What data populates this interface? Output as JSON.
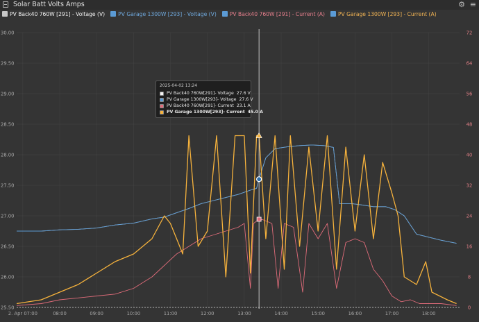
{
  "window": {
    "title": "Solar Batt Volts Amps"
  },
  "legend": [
    {
      "label": "PV Back40 760W [291] - Voltage (V)",
      "color": "#e8e8e8",
      "text_color": "#f2f2f2"
    },
    {
      "label": "PV Garage 1300W [293] - Voltage (V)",
      "color": "#5b9bd5",
      "text_color": "#6fa8dc"
    },
    {
      "label": "PV Back40 760W [291] - Current (A)",
      "color": "#e06c7a",
      "text_color": "#e57f8c"
    },
    {
      "label": "PV Garage 1300W [293] - Current (A)",
      "color": "#f6b23c",
      "text_color": "#f2b454"
    }
  ],
  "tooltip": {
    "header": "2025-04-02 13:24",
    "rows": [
      {
        "name": "PV Back40 760W[291]- Voltage",
        "value": "27.6 V",
        "color": "#f5f5f5",
        "bold": false
      },
      {
        "name": "PV Garage 1300W[293]- Voltage",
        "value": "27.6 V",
        "color": "#5b9bd5",
        "bold": false
      },
      {
        "name": "PV Back40 760W[291]- Current",
        "value": "23.1 A",
        "color": "#e06c7a",
        "bold": false
      },
      {
        "name": "PV Garage 1300W[293]- Current",
        "value": "45.0 A",
        "color": "#f6b23c",
        "bold": true
      }
    ]
  },
  "chart_data": {
    "type": "line",
    "x_range": [
      "2025-04-02 06:50",
      "2025-04-02 18:50"
    ],
    "x_ticks": [
      "2. Apr 07:00",
      "08:00",
      "09:00",
      "10:00",
      "11:00",
      "12:00",
      "13:00",
      "14:00",
      "15:00",
      "16:00",
      "17:00",
      "18:00"
    ],
    "y_left": {
      "unit": "V",
      "range": [
        25.5,
        30.0
      ],
      "ticks": [
        "25.50",
        "26.00",
        "26.50",
        "27.00",
        "27.50",
        "28.00",
        "28.50",
        "29.00",
        "29.50",
        "30.00"
      ]
    },
    "y_right": {
      "unit": "A",
      "range": [
        0,
        72
      ],
      "ticks": [
        "0",
        "8",
        "16",
        "24",
        "32",
        "40",
        "48",
        "56",
        "64",
        "72"
      ]
    },
    "crosshair_time": "13:24",
    "series": [
      {
        "name": "PV Back40 760W [291] - Voltage (V)",
        "axis": "left",
        "color": "#e8e8e8",
        "points": [
          [
            "06:50",
            26.75
          ],
          [
            "07:30",
            26.75
          ],
          [
            "08:00",
            26.77
          ],
          [
            "08:30",
            26.78
          ],
          [
            "09:00",
            26.8
          ],
          [
            "09:30",
            26.85
          ],
          [
            "10:00",
            26.88
          ],
          [
            "10:30",
            26.95
          ],
          [
            "10:50",
            26.98
          ],
          [
            "11:10",
            27.05
          ],
          [
            "11:30",
            27.12
          ],
          [
            "11:50",
            27.2
          ],
          [
            "12:10",
            27.25
          ],
          [
            "12:30",
            27.3
          ],
          [
            "12:50",
            27.35
          ],
          [
            "13:10",
            27.42
          ],
          [
            "13:20",
            27.45
          ],
          [
            "13:24",
            27.6
          ],
          [
            "13:35",
            27.95
          ],
          [
            "13:50",
            28.1
          ],
          [
            "14:10",
            28.13
          ],
          [
            "14:30",
            28.15
          ],
          [
            "14:50",
            28.16
          ],
          [
            "15:10",
            28.15
          ],
          [
            "15:25",
            28.12
          ],
          [
            "15:35",
            27.2
          ],
          [
            "15:55",
            27.2
          ],
          [
            "16:10",
            27.18
          ],
          [
            "16:30",
            27.15
          ],
          [
            "16:50",
            27.15
          ],
          [
            "17:05",
            27.1
          ],
          [
            "17:20",
            27.0
          ],
          [
            "17:40",
            26.7
          ],
          [
            "18:00",
            26.65
          ],
          [
            "18:20",
            26.6
          ],
          [
            "18:45",
            26.55
          ]
        ]
      },
      {
        "name": "PV Garage 1300W [293] - Voltage (V)",
        "axis": "left",
        "color": "#5b9bd5",
        "points": [
          [
            "06:50",
            26.75
          ],
          [
            "07:30",
            26.75
          ],
          [
            "08:00",
            26.77
          ],
          [
            "08:30",
            26.78
          ],
          [
            "09:00",
            26.8
          ],
          [
            "09:30",
            26.85
          ],
          [
            "10:00",
            26.88
          ],
          [
            "10:30",
            26.95
          ],
          [
            "10:50",
            26.98
          ],
          [
            "11:10",
            27.05
          ],
          [
            "11:30",
            27.12
          ],
          [
            "11:50",
            27.2
          ],
          [
            "12:10",
            27.25
          ],
          [
            "12:30",
            27.3
          ],
          [
            "12:50",
            27.35
          ],
          [
            "13:10",
            27.42
          ],
          [
            "13:20",
            27.45
          ],
          [
            "13:24",
            27.6
          ],
          [
            "13:35",
            27.95
          ],
          [
            "13:50",
            28.1
          ],
          [
            "14:10",
            28.13
          ],
          [
            "14:30",
            28.15
          ],
          [
            "14:50",
            28.16
          ],
          [
            "15:10",
            28.15
          ],
          [
            "15:25",
            28.12
          ],
          [
            "15:35",
            27.2
          ],
          [
            "15:55",
            27.2
          ],
          [
            "16:10",
            27.18
          ],
          [
            "16:30",
            27.15
          ],
          [
            "16:50",
            27.15
          ],
          [
            "17:05",
            27.1
          ],
          [
            "17:20",
            27.0
          ],
          [
            "17:40",
            26.7
          ],
          [
            "18:00",
            26.65
          ],
          [
            "18:20",
            26.6
          ],
          [
            "18:45",
            26.55
          ]
        ]
      },
      {
        "name": "PV Back40 760W [291] - Current (A)",
        "axis": "right",
        "color": "#e06c7a",
        "points": [
          [
            "06:50",
            0.5
          ],
          [
            "07:30",
            1
          ],
          [
            "08:00",
            2
          ],
          [
            "08:30",
            2.5
          ],
          [
            "09:00",
            3
          ],
          [
            "09:30",
            3.5
          ],
          [
            "10:00",
            5
          ],
          [
            "10:30",
            8
          ],
          [
            "10:50",
            11
          ],
          [
            "11:10",
            14
          ],
          [
            "11:30",
            16
          ],
          [
            "11:50",
            18
          ],
          [
            "12:10",
            19
          ],
          [
            "12:30",
            20
          ],
          [
            "12:50",
            21
          ],
          [
            "13:00",
            22
          ],
          [
            "13:10",
            5
          ],
          [
            "13:15",
            22
          ],
          [
            "13:24",
            23.1
          ],
          [
            "13:30",
            23
          ],
          [
            "13:45",
            22
          ],
          [
            "13:55",
            5
          ],
          [
            "14:05",
            22
          ],
          [
            "14:20",
            21
          ],
          [
            "14:35",
            4
          ],
          [
            "14:45",
            22
          ],
          [
            "15:00",
            18
          ],
          [
            "15:15",
            22
          ],
          [
            "15:30",
            5
          ],
          [
            "15:45",
            17
          ],
          [
            "16:00",
            18
          ],
          [
            "16:15",
            17
          ],
          [
            "16:30",
            10
          ],
          [
            "16:45",
            7
          ],
          [
            "17:00",
            3
          ],
          [
            "17:15",
            1.5
          ],
          [
            "17:30",
            2
          ],
          [
            "17:45",
            1
          ],
          [
            "18:00",
            1
          ],
          [
            "18:20",
            1
          ],
          [
            "18:45",
            0.5
          ]
        ]
      },
      {
        "name": "PV Garage 1300W [293] - Current (A)",
        "axis": "right",
        "color": "#f6b23c",
        "points": [
          [
            "06:50",
            1
          ],
          [
            "07:30",
            2
          ],
          [
            "08:00",
            4
          ],
          [
            "08:30",
            6
          ],
          [
            "09:00",
            9
          ],
          [
            "09:30",
            12
          ],
          [
            "10:00",
            14
          ],
          [
            "10:30",
            18
          ],
          [
            "10:50",
            24
          ],
          [
            "11:00",
            22
          ],
          [
            "11:20",
            14
          ],
          [
            "11:30",
            45
          ],
          [
            "11:45",
            16
          ],
          [
            "12:00",
            20
          ],
          [
            "12:15",
            45
          ],
          [
            "12:30",
            8
          ],
          [
            "12:45",
            45
          ],
          [
            "13:00",
            45
          ],
          [
            "13:10",
            9
          ],
          [
            "13:20",
            45
          ],
          [
            "13:24",
            45
          ],
          [
            "13:35",
            18
          ],
          [
            "13:50",
            45
          ],
          [
            "14:05",
            10
          ],
          [
            "14:15",
            45
          ],
          [
            "14:30",
            16
          ],
          [
            "14:45",
            42
          ],
          [
            "15:00",
            20
          ],
          [
            "15:15",
            45
          ],
          [
            "15:30",
            10
          ],
          [
            "15:45",
            42
          ],
          [
            "16:00",
            20
          ],
          [
            "16:15",
            40
          ],
          [
            "16:30",
            18
          ],
          [
            "16:45",
            38
          ],
          [
            "17:00",
            30
          ],
          [
            "17:10",
            24
          ],
          [
            "17:20",
            8
          ],
          [
            "17:40",
            6
          ],
          [
            "17:55",
            12
          ],
          [
            "18:05",
            4
          ],
          [
            "18:30",
            2
          ],
          [
            "18:45",
            1
          ]
        ]
      }
    ]
  }
}
